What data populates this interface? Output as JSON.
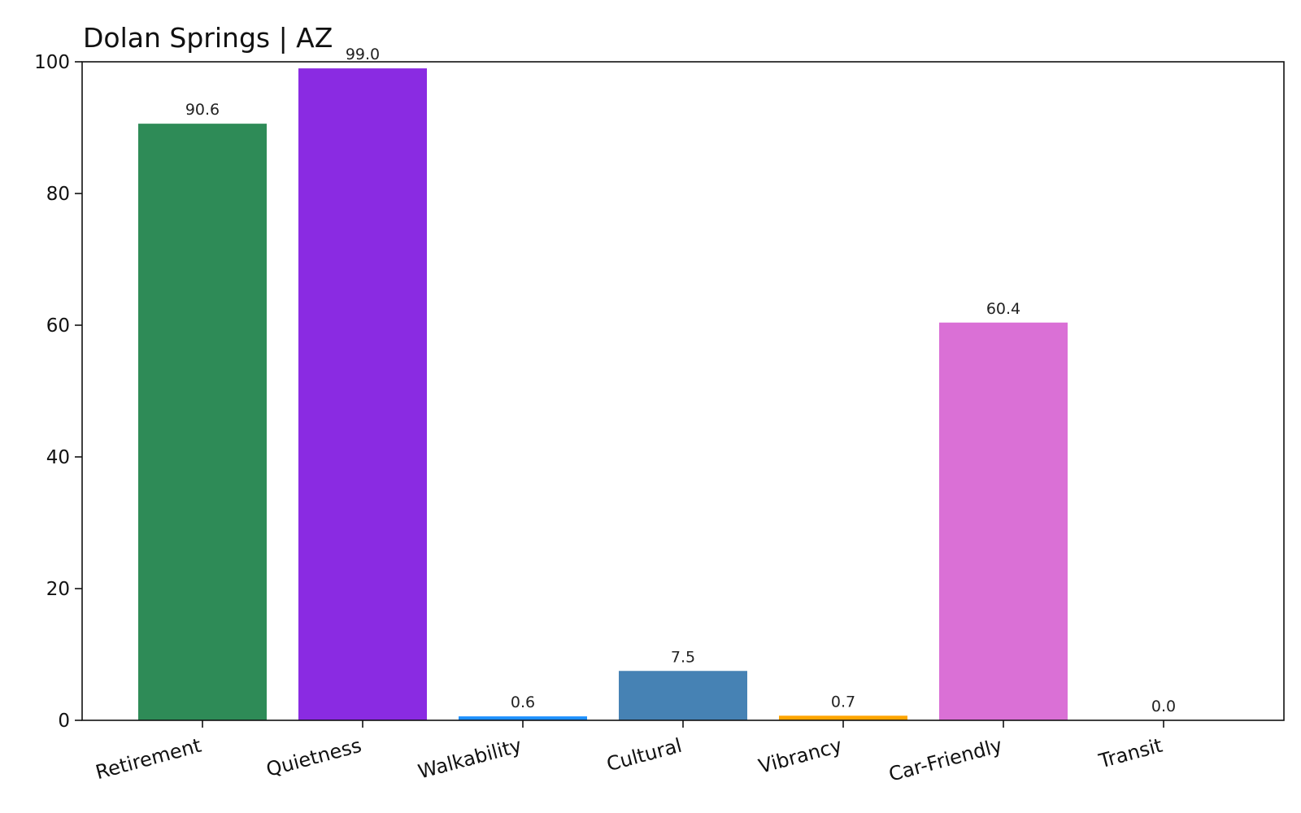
{
  "chart_data": {
    "type": "bar",
    "title": "Dolan Springs | AZ",
    "xlabel": "",
    "ylabel": "",
    "ylim": [
      0,
      100
    ],
    "yticks": [
      "0",
      "20",
      "40",
      "60",
      "80",
      "100"
    ],
    "grid": false,
    "legend": "none",
    "categories": [
      "Retirement",
      "Quietness",
      "Walkability",
      "Cultural",
      "Vibrancy",
      "Car-Friendly",
      "Transit"
    ],
    "values": [
      90.6,
      99.0,
      0.6,
      7.5,
      0.7,
      60.4,
      0.0
    ],
    "value_labels": [
      "90.6",
      "99.0",
      "0.6",
      "7.5",
      "0.7",
      "60.4",
      "0.0"
    ],
    "colors": [
      "#2e8b57",
      "#8a2be2",
      "#1e90ff",
      "#4682b4",
      "#ffa500",
      "#da70d6",
      "#808080"
    ]
  }
}
